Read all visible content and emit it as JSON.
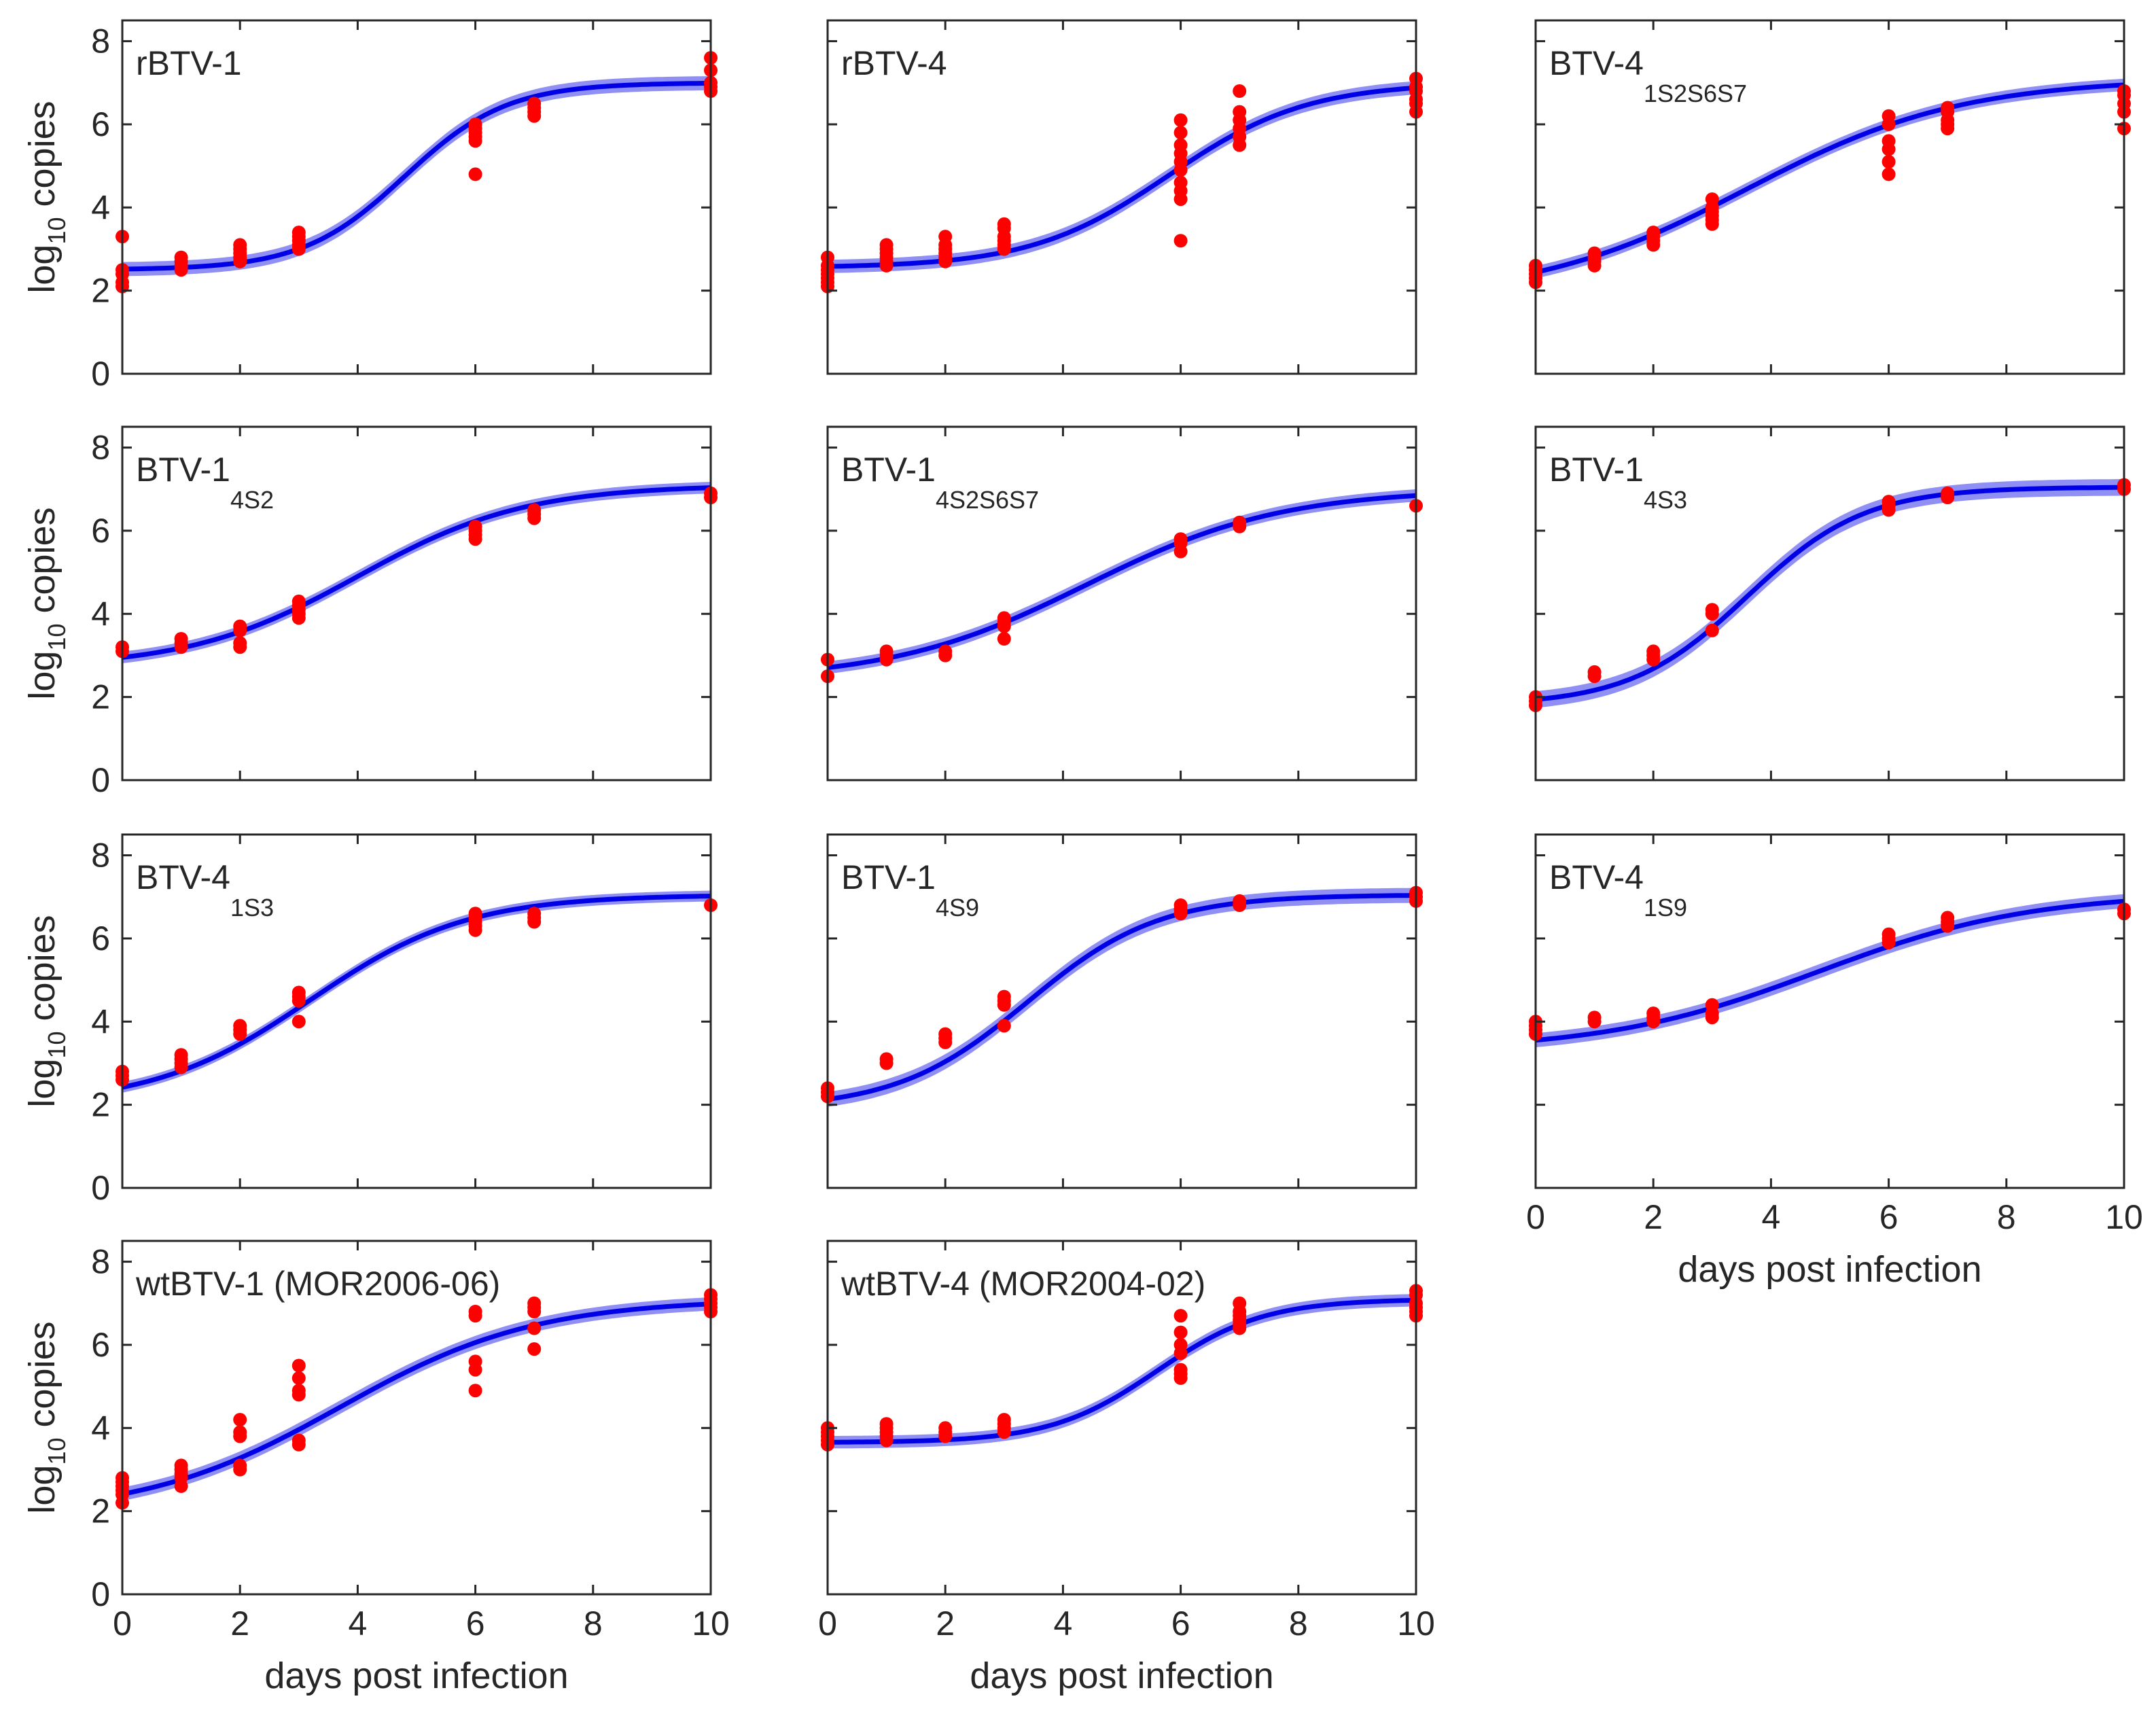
{
  "figure": {
    "xlabel": "days post infection",
    "ylabel_main": "log",
    "ylabel_sub": "10",
    "ylabel_rest": " copies"
  },
  "colors": {
    "curve": "#0000e6",
    "band": "#7b7bf2",
    "points": "#ff0000",
    "axes": "#262626"
  },
  "chart_data": [
    {
      "type": "scatter",
      "title": "rBTV-1",
      "title_sub": "",
      "xlim": [
        0,
        10
      ],
      "ylim": [
        0,
        8.5
      ],
      "xticks": [
        0,
        2,
        4,
        6,
        8,
        10
      ],
      "yticks": [
        0,
        2,
        4,
        6,
        8
      ],
      "show_xticklabels": false,
      "show_yticklabels": true,
      "show_xlabel": false,
      "show_ylabel": true,
      "fit": {
        "lower": 2.5,
        "upper": 7.0,
        "midpoint": 4.8,
        "steepness": 1.15,
        "band": 0.17
      },
      "points": [
        {
          "x": 0,
          "ys": [
            3.3,
            2.5,
            2.4,
            2.2,
            2.1
          ]
        },
        {
          "x": 1,
          "ys": [
            2.8,
            2.7,
            2.6,
            2.5
          ]
        },
        {
          "x": 2,
          "ys": [
            3.1,
            3.0,
            2.9,
            2.8,
            2.7
          ]
        },
        {
          "x": 3,
          "ys": [
            3.4,
            3.3,
            3.2,
            3.1,
            3.0
          ]
        },
        {
          "x": 6,
          "ys": [
            6.0,
            5.9,
            5.8,
            5.7,
            5.6,
            4.8
          ]
        },
        {
          "x": 7,
          "ys": [
            6.5,
            6.4,
            6.3,
            6.2
          ]
        },
        {
          "x": 10,
          "ys": [
            7.6,
            7.3,
            7.0,
            6.9,
            6.8
          ]
        }
      ]
    },
    {
      "type": "scatter",
      "title": "rBTV-4",
      "title_sub": "",
      "xlim": [
        0,
        10
      ],
      "ylim": [
        0,
        8.5
      ],
      "xticks": [
        0,
        2,
        4,
        6,
        8,
        10
      ],
      "yticks": [
        0,
        2,
        4,
        6,
        8
      ],
      "show_xticklabels": false,
      "show_yticklabels": false,
      "show_xlabel": false,
      "show_ylabel": false,
      "fit": {
        "lower": 2.55,
        "upper": 7.0,
        "midpoint": 5.8,
        "steepness": 0.85,
        "band": 0.16
      },
      "points": [
        {
          "x": 0,
          "ys": [
            2.8,
            2.6,
            2.5,
            2.4,
            2.3,
            2.2,
            2.1
          ]
        },
        {
          "x": 1,
          "ys": [
            3.1,
            3.0,
            2.9,
            2.8,
            2.7,
            2.6
          ]
        },
        {
          "x": 2,
          "ys": [
            3.3,
            3.1,
            3.0,
            2.9,
            2.8,
            2.7
          ]
        },
        {
          "x": 3,
          "ys": [
            3.6,
            3.5,
            3.3,
            3.2,
            3.1,
            3.0
          ]
        },
        {
          "x": 6,
          "ys": [
            6.1,
            5.8,
            5.5,
            5.3,
            5.1,
            4.9,
            4.6,
            4.4,
            4.2,
            3.2
          ]
        },
        {
          "x": 7,
          "ys": [
            6.8,
            6.3,
            6.1,
            5.9,
            5.7,
            5.5
          ]
        },
        {
          "x": 10,
          "ys": [
            7.1,
            6.9,
            6.8,
            6.6,
            6.5,
            6.3
          ]
        }
      ]
    },
    {
      "type": "scatter",
      "title": "BTV-4",
      "title_sub": "1S2S6S7",
      "xlim": [
        0,
        10
      ],
      "ylim": [
        0,
        8.5
      ],
      "xticks": [
        0,
        2,
        4,
        6,
        8,
        10
      ],
      "yticks": [
        0,
        2,
        4,
        6,
        8
      ],
      "show_xticklabels": false,
      "show_yticklabels": false,
      "show_xlabel": false,
      "show_ylabel": false,
      "fit": {
        "lower": 1.8,
        "upper": 7.1,
        "midpoint": 3.6,
        "steepness": 0.55,
        "band": 0.15
      },
      "points": [
        {
          "x": 0,
          "ys": [
            2.6,
            2.5,
            2.4,
            2.3,
            2.2
          ]
        },
        {
          "x": 1,
          "ys": [
            2.9,
            2.8,
            2.7,
            2.6
          ]
        },
        {
          "x": 2,
          "ys": [
            3.4,
            3.3,
            3.2,
            3.1
          ]
        },
        {
          "x": 3,
          "ys": [
            4.2,
            4.0,
            3.9,
            3.8,
            3.7,
            3.6
          ]
        },
        {
          "x": 6,
          "ys": [
            6.2,
            6.0,
            5.6,
            5.4,
            5.1,
            4.8
          ]
        },
        {
          "x": 7,
          "ys": [
            6.4,
            6.3,
            6.1,
            6.0,
            5.9
          ]
        },
        {
          "x": 10,
          "ys": [
            6.8,
            6.7,
            6.5,
            6.3,
            5.9
          ]
        }
      ]
    },
    {
      "type": "scatter",
      "title": "BTV-1",
      "title_sub": "4S2",
      "xlim": [
        0,
        10
      ],
      "ylim": [
        0,
        8.5
      ],
      "xticks": [
        0,
        2,
        4,
        6,
        8,
        10
      ],
      "yticks": [
        0,
        2,
        4,
        6,
        8
      ],
      "show_xticklabels": false,
      "show_yticklabels": true,
      "show_xlabel": false,
      "show_ylabel": true,
      "fit": {
        "lower": 2.7,
        "upper": 7.1,
        "midpoint": 4.0,
        "steepness": 0.7,
        "band": 0.14
      },
      "points": [
        {
          "x": 0,
          "ys": [
            3.2,
            3.1
          ]
        },
        {
          "x": 1,
          "ys": [
            3.4,
            3.3,
            3.2
          ]
        },
        {
          "x": 2,
          "ys": [
            3.7,
            3.6,
            3.3,
            3.2
          ]
        },
        {
          "x": 3,
          "ys": [
            4.3,
            4.2,
            4.1,
            4.0,
            3.9
          ]
        },
        {
          "x": 6,
          "ys": [
            6.1,
            6.0,
            5.9,
            5.8
          ]
        },
        {
          "x": 7,
          "ys": [
            6.5,
            6.4,
            6.3
          ]
        },
        {
          "x": 10,
          "ys": [
            6.9,
            6.8
          ]
        }
      ]
    },
    {
      "type": "scatter",
      "title": "BTV-1",
      "title_sub": "4S2S6S7",
      "xlim": [
        0,
        10
      ],
      "ylim": [
        0,
        8.5
      ],
      "xticks": [
        0,
        2,
        4,
        6,
        8,
        10
      ],
      "yticks": [
        0,
        2,
        4,
        6,
        8
      ],
      "show_xticklabels": false,
      "show_yticklabels": false,
      "show_xlabel": false,
      "show_ylabel": false,
      "fit": {
        "lower": 2.4,
        "upper": 7.0,
        "midpoint": 4.4,
        "steepness": 0.6,
        "band": 0.15
      },
      "points": [
        {
          "x": 0,
          "ys": [
            2.9,
            2.5
          ]
        },
        {
          "x": 1,
          "ys": [
            3.1,
            3.0,
            2.9
          ]
        },
        {
          "x": 2,
          "ys": [
            3.1,
            3.0
          ]
        },
        {
          "x": 3,
          "ys": [
            3.9,
            3.8,
            3.7,
            3.4
          ]
        },
        {
          "x": 6,
          "ys": [
            5.8,
            5.7,
            5.5
          ]
        },
        {
          "x": 7,
          "ys": [
            6.2,
            6.1
          ]
        },
        {
          "x": 10,
          "ys": [
            6.6
          ]
        }
      ]
    },
    {
      "type": "scatter",
      "title": "BTV-1",
      "title_sub": "4S3",
      "xlim": [
        0,
        10
      ],
      "ylim": [
        0,
        8.5
      ],
      "xticks": [
        0,
        2,
        4,
        6,
        8,
        10
      ],
      "yticks": [
        0,
        2,
        4,
        6,
        8
      ],
      "show_xticklabels": false,
      "show_yticklabels": false,
      "show_xlabel": false,
      "show_ylabel": false,
      "fit": {
        "lower": 1.8,
        "upper": 7.05,
        "midpoint": 3.6,
        "steepness": 1.0,
        "band": 0.2
      },
      "points": [
        {
          "x": 0,
          "ys": [
            2.0,
            1.9,
            1.8
          ]
        },
        {
          "x": 1,
          "ys": [
            2.6,
            2.5
          ]
        },
        {
          "x": 2,
          "ys": [
            3.1,
            3.0,
            2.9
          ]
        },
        {
          "x": 3,
          "ys": [
            4.1,
            4.0,
            3.6
          ]
        },
        {
          "x": 6,
          "ys": [
            6.7,
            6.6,
            6.5
          ]
        },
        {
          "x": 7,
          "ys": [
            6.9,
            6.8
          ]
        },
        {
          "x": 10,
          "ys": [
            7.1,
            7.0
          ]
        }
      ]
    },
    {
      "type": "scatter",
      "title": "BTV-4",
      "title_sub": "1S3",
      "xlim": [
        0,
        10
      ],
      "ylim": [
        0,
        8.5
      ],
      "xticks": [
        0,
        2,
        4,
        6,
        8,
        10
      ],
      "yticks": [
        0,
        2,
        4,
        6,
        8
      ],
      "show_xticklabels": false,
      "show_yticklabels": true,
      "show_xlabel": false,
      "show_ylabel": true,
      "fit": {
        "lower": 2.0,
        "upper": 7.05,
        "midpoint": 3.2,
        "steepness": 0.75,
        "band": 0.13
      },
      "points": [
        {
          "x": 0,
          "ys": [
            2.8,
            2.7,
            2.6
          ]
        },
        {
          "x": 1,
          "ys": [
            3.2,
            3.1,
            3.0,
            2.9
          ]
        },
        {
          "x": 2,
          "ys": [
            3.9,
            3.8,
            3.7
          ]
        },
        {
          "x": 3,
          "ys": [
            4.7,
            4.6,
            4.5,
            4.0
          ]
        },
        {
          "x": 6,
          "ys": [
            6.6,
            6.5,
            6.4,
            6.3,
            6.2
          ]
        },
        {
          "x": 7,
          "ys": [
            6.6,
            6.5,
            6.4
          ]
        },
        {
          "x": 10,
          "ys": [
            6.8
          ]
        }
      ]
    },
    {
      "type": "scatter",
      "title": "BTV-1",
      "title_sub": "4S9",
      "xlim": [
        0,
        10
      ],
      "ylim": [
        0,
        8.5
      ],
      "xticks": [
        0,
        2,
        4,
        6,
        8,
        10
      ],
      "yticks": [
        0,
        2,
        4,
        6,
        8
      ],
      "show_xticklabels": false,
      "show_yticklabels": false,
      "show_xlabel": false,
      "show_ylabel": false,
      "fit": {
        "lower": 1.9,
        "upper": 7.05,
        "midpoint": 3.4,
        "steepness": 0.9,
        "band": 0.18
      },
      "points": [
        {
          "x": 0,
          "ys": [
            2.4,
            2.3,
            2.2
          ]
        },
        {
          "x": 1,
          "ys": [
            3.1,
            3.0
          ]
        },
        {
          "x": 2,
          "ys": [
            3.7,
            3.6,
            3.5
          ]
        },
        {
          "x": 3,
          "ys": [
            4.6,
            4.5,
            4.4,
            3.9
          ]
        },
        {
          "x": 6,
          "ys": [
            6.8,
            6.7,
            6.6
          ]
        },
        {
          "x": 7,
          "ys": [
            6.9,
            6.8
          ]
        },
        {
          "x": 10,
          "ys": [
            7.1,
            7.0,
            6.9
          ]
        }
      ]
    },
    {
      "type": "scatter",
      "title": "BTV-4",
      "title_sub": "1S9",
      "xlim": [
        0,
        10
      ],
      "ylim": [
        0,
        8.5
      ],
      "xticks": [
        0,
        2,
        4,
        6,
        8,
        10
      ],
      "yticks": [
        0,
        2,
        4,
        6,
        8
      ],
      "show_xticklabels": true,
      "show_yticklabels": false,
      "show_xlabel": true,
      "show_ylabel": false,
      "fit": {
        "lower": 3.3,
        "upper": 7.1,
        "midpoint": 4.8,
        "steepness": 0.55,
        "band": 0.17
      },
      "points": [
        {
          "x": 0,
          "ys": [
            4.0,
            3.9,
            3.8,
            3.7
          ]
        },
        {
          "x": 1,
          "ys": [
            4.1,
            4.0
          ]
        },
        {
          "x": 2,
          "ys": [
            4.2,
            4.1,
            4.0
          ]
        },
        {
          "x": 3,
          "ys": [
            4.4,
            4.2,
            4.1
          ]
        },
        {
          "x": 6,
          "ys": [
            6.1,
            6.0,
            5.9
          ]
        },
        {
          "x": 7,
          "ys": [
            6.5,
            6.4,
            6.3
          ]
        },
        {
          "x": 10,
          "ys": [
            6.7,
            6.6
          ]
        }
      ]
    },
    {
      "type": "scatter",
      "title": "wtBTV-1 (MOR2006-06)",
      "title_sub": "",
      "xlim": [
        0,
        10
      ],
      "ylim": [
        0,
        8.5
      ],
      "xticks": [
        0,
        2,
        4,
        6,
        8,
        10
      ],
      "yticks": [
        0,
        2,
        4,
        6,
        8
      ],
      "show_xticklabels": true,
      "show_yticklabels": true,
      "show_xlabel": true,
      "show_ylabel": true,
      "fit": {
        "lower": 1.9,
        "upper": 7.1,
        "midpoint": 3.7,
        "steepness": 0.6,
        "band": 0.16
      },
      "points": [
        {
          "x": 0,
          "ys": [
            2.8,
            2.7,
            2.6,
            2.5,
            2.4,
            2.2
          ]
        },
        {
          "x": 1,
          "ys": [
            3.1,
            3.0,
            2.9,
            2.8,
            2.6
          ]
        },
        {
          "x": 2,
          "ys": [
            4.2,
            3.9,
            3.8,
            3.1,
            3.0
          ]
        },
        {
          "x": 3,
          "ys": [
            5.5,
            5.2,
            4.9,
            4.8,
            3.7,
            3.6
          ]
        },
        {
          "x": 6,
          "ys": [
            6.8,
            6.7,
            5.6,
            5.4,
            4.9
          ]
        },
        {
          "x": 7,
          "ys": [
            7.0,
            6.9,
            6.8,
            6.4,
            5.9
          ]
        },
        {
          "x": 10,
          "ys": [
            7.2,
            7.1,
            7.0,
            6.9,
            6.8
          ]
        }
      ]
    },
    {
      "type": "scatter",
      "title": "wtBTV-4 (MOR2004-02)",
      "title_sub": "",
      "xlim": [
        0,
        10
      ],
      "ylim": [
        0,
        8.5
      ],
      "xticks": [
        0,
        2,
        4,
        6,
        8,
        10
      ],
      "yticks": [
        0,
        2,
        4,
        6,
        8
      ],
      "show_xticklabels": true,
      "show_yticklabels": false,
      "show_xlabel": true,
      "show_ylabel": false,
      "fit": {
        "lower": 3.65,
        "upper": 7.1,
        "midpoint": 5.6,
        "steepness": 1.1,
        "band": 0.15
      },
      "points": [
        {
          "x": 0,
          "ys": [
            4.0,
            3.9,
            3.8,
            3.7,
            3.6
          ]
        },
        {
          "x": 1,
          "ys": [
            4.1,
            4.0,
            3.9,
            3.8,
            3.7
          ]
        },
        {
          "x": 2,
          "ys": [
            4.0,
            3.9,
            3.8
          ]
        },
        {
          "x": 3,
          "ys": [
            4.2,
            4.1,
            4.0,
            3.9
          ]
        },
        {
          "x": 6,
          "ys": [
            6.7,
            6.3,
            6.0,
            5.8,
            5.4,
            5.3,
            5.2
          ]
        },
        {
          "x": 7,
          "ys": [
            7.0,
            6.8,
            6.7,
            6.6,
            6.5,
            6.4
          ]
        },
        {
          "x": 10,
          "ys": [
            7.3,
            7.2,
            7.0,
            6.9,
            6.8,
            6.7
          ]
        }
      ]
    }
  ]
}
